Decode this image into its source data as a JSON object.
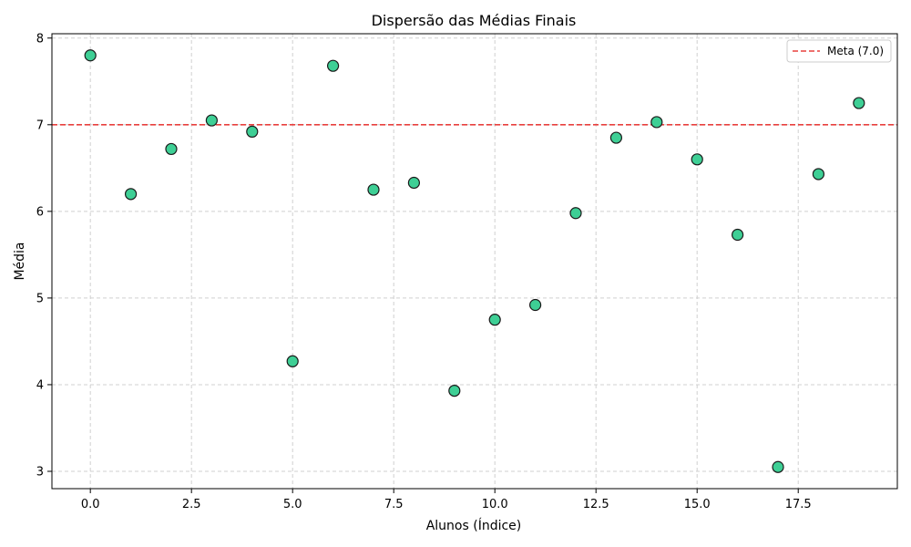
{
  "chart_data": {
    "type": "scatter",
    "title": "Dispersão das Médias Finais",
    "xlabel": "Alunos (Índice)",
    "ylabel": "Média",
    "xlim": [
      -0.95,
      19.95
    ],
    "ylim": [
      2.8,
      8.05
    ],
    "xticks": [
      0,
      2.5,
      5,
      7.5,
      10,
      12.5,
      15,
      17.5
    ],
    "xtick_labels": [
      "0.0",
      "2.5",
      "5.0",
      "7.5",
      "10.0",
      "12.5",
      "15.0",
      "17.5"
    ],
    "yticks": [
      3,
      4,
      5,
      6,
      7,
      8
    ],
    "ytick_labels": [
      "3",
      "4",
      "5",
      "6",
      "7",
      "8"
    ],
    "grid": true,
    "legend_position": "top-right",
    "series": [
      {
        "x": [
          0,
          1,
          2,
          3,
          4,
          5,
          6,
          7,
          8,
          9,
          10,
          11,
          12,
          13,
          14,
          15,
          16,
          17,
          18,
          19
        ],
        "y": [
          7.8,
          6.2,
          6.72,
          7.05,
          6.92,
          4.27,
          7.68,
          6.25,
          6.33,
          3.93,
          4.75,
          4.92,
          5.98,
          6.85,
          7.03,
          6.6,
          5.73,
          3.05,
          6.43,
          7.25
        ],
        "color": "#3ecf95",
        "edge_color": "#1a1a1a"
      }
    ],
    "reference_line": {
      "y": 7.0,
      "label": "Meta (7.0)",
      "color": "#e8403f",
      "style": "dashed"
    }
  }
}
